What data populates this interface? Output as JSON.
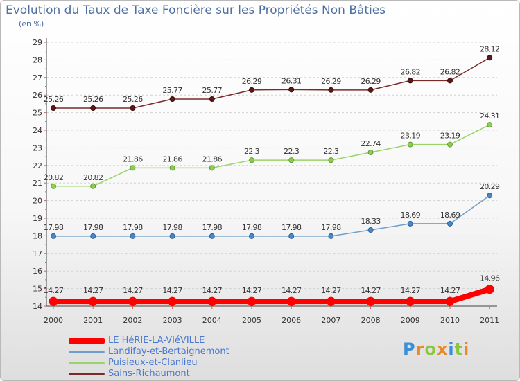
{
  "title": "Evolution du Taux de Taxe Foncière sur les Propriétés Non Bâties",
  "subtitle": "(en %)",
  "logo": {
    "text": "Proxiti",
    "letters": [
      {
        "ch": "P",
        "color": "#3a8fd8"
      },
      {
        "ch": "r",
        "color": "#e8892c"
      },
      {
        "ch": "o",
        "color": "#8cc63f"
      },
      {
        "ch": "x",
        "color": "#e8892c"
      },
      {
        "ch": "i",
        "color": "#3a8fd8"
      },
      {
        "ch": "t",
        "color": "#8cc63f"
      },
      {
        "ch": "i",
        "color": "#e8892c"
      }
    ]
  },
  "chart_data": {
    "type": "line",
    "title": "Evolution du Taux de Taxe Foncière sur les Propriétés Non Bâties",
    "ylabel": "(en %)",
    "xlabel": "",
    "x": [
      "2000",
      "2001",
      "2002",
      "2003",
      "2004",
      "2005",
      "2006",
      "2007",
      "2008",
      "2009",
      "2010",
      "2011"
    ],
    "ylim": [
      14,
      29
    ],
    "yticks": [
      "14",
      "15",
      "16",
      "17",
      "18",
      "19",
      "20",
      "21",
      "22",
      "23",
      "24",
      "25",
      "26",
      "27",
      "28",
      "29"
    ],
    "grid": "horizontal dashed",
    "series": [
      {
        "name": "LE HéRIE-LA-VIéVILLE",
        "color": "#ff0000",
        "values": [
          14.27,
          14.27,
          14.27,
          14.27,
          14.27,
          14.27,
          14.27,
          14.27,
          14.27,
          14.27,
          14.27,
          14.96
        ],
        "labels": [
          "14.27",
          "14.27",
          "14.27",
          "14.27",
          "14.27",
          "14.27",
          "14.27",
          "14.27",
          "14.27",
          "14.27",
          "14.27",
          "14.96"
        ]
      },
      {
        "name": "Landifay-et-Bertaignemont",
        "color": "#6f9fc8",
        "values": [
          17.98,
          17.98,
          17.98,
          17.98,
          17.98,
          17.98,
          17.98,
          17.98,
          18.33,
          18.69,
          18.69,
          20.29
        ],
        "labels": [
          "17.98",
          "17.98",
          "17.98",
          "17.98",
          "17.98",
          "17.98",
          "17.98",
          "17.98",
          "18.33",
          "18.69",
          "18.69",
          "20.29"
        ]
      },
      {
        "name": "Puisieux-et-Clanlieu",
        "color": "#9ad468",
        "values": [
          20.82,
          20.82,
          21.86,
          21.86,
          21.86,
          22.3,
          22.3,
          22.3,
          22.74,
          23.19,
          23.19,
          24.31
        ],
        "labels": [
          "20.82",
          "20.82",
          "21.86",
          "21.86",
          "21.86",
          "22.3",
          "22.3",
          "22.3",
          "22.74",
          "23.19",
          "23.19",
          "24.31"
        ]
      },
      {
        "name": "Sains-Richaumont",
        "color": "#7a2a2a",
        "values": [
          25.26,
          25.26,
          25.26,
          25.77,
          25.77,
          26.29,
          26.31,
          26.29,
          26.29,
          26.82,
          26.82,
          28.12
        ],
        "labels": [
          "25.26",
          "25.26",
          "25.26",
          "25.77",
          "25.77",
          "26.29",
          "26.31",
          "26.29",
          "26.29",
          "26.82",
          "26.82",
          "28.12"
        ]
      }
    ],
    "legend": "bottom-left"
  }
}
